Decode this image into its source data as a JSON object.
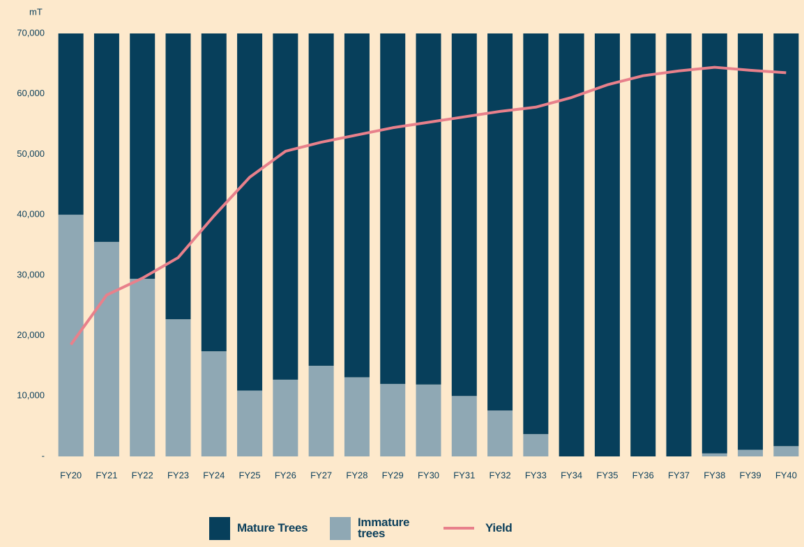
{
  "chart_data": {
    "type": "bar",
    "y_unit": "mT",
    "categories": [
      "FY20",
      "FY21",
      "FY22",
      "FY23",
      "FY24",
      "FY25",
      "FY26",
      "FY27",
      "FY28",
      "FY29",
      "FY30",
      "FY31",
      "FY32",
      "FY33",
      "FY34",
      "FY35",
      "FY36",
      "FY37",
      "FY38",
      "FY39",
      "FY40"
    ],
    "series": [
      {
        "name": "Mature Trees",
        "type": "bar",
        "color": "#073f5b",
        "values": [
          30000,
          34500,
          40600,
          47300,
          52600,
          59100,
          57300,
          55000,
          56900,
          58000,
          58100,
          60000,
          62400,
          66300,
          70000,
          70000,
          70000,
          70000,
          69500,
          68900,
          68300
        ]
      },
      {
        "name": "Immature trees",
        "type": "bar",
        "color": "#8fa8b4",
        "values": [
          40000,
          35500,
          29400,
          22700,
          17400,
          10900,
          12700,
          15000,
          13100,
          12000,
          11900,
          10000,
          7600,
          3700,
          0,
          0,
          0,
          0,
          500,
          1100,
          1700
        ]
      },
      {
        "name": "Yield",
        "type": "line",
        "color": "#e8808b",
        "values": [
          18500,
          26700,
          29500,
          32900,
          39800,
          46200,
          50500,
          52000,
          53200,
          54400,
          55300,
          56200,
          57100,
          57800,
          59400,
          61500,
          63000,
          63800,
          64400,
          63900,
          63500
        ]
      }
    ],
    "stacked": true,
    "ylim": [
      0,
      70000
    ],
    "yticks": [
      {
        "value": 0,
        "label": "-"
      },
      {
        "value": 10000,
        "label": "10,000"
      },
      {
        "value": 20000,
        "label": "20,000"
      },
      {
        "value": 30000,
        "label": "30,000"
      },
      {
        "value": 40000,
        "label": "40,000"
      },
      {
        "value": 50000,
        "label": "50,000"
      },
      {
        "value": 60000,
        "label": "60,000"
      },
      {
        "value": 70000,
        "label": "70,000"
      }
    ],
    "grid": false,
    "legend": "bottom"
  }
}
